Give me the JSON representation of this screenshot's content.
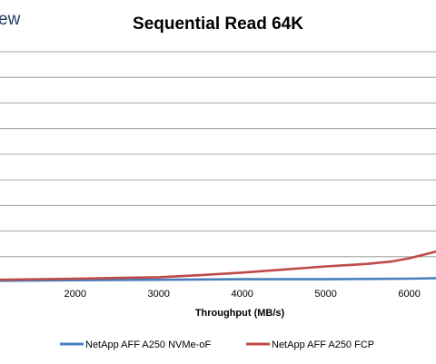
{
  "brand_text": "ew",
  "chart_data": {
    "type": "line",
    "title": "Sequential Read 64K",
    "xlabel": "Throughput (MB/s)",
    "ylabel": "",
    "xlim": [
      1100,
      6320
    ],
    "ylim": [
      0,
      4.5
    ],
    "x_ticks": [
      "2000",
      "3000",
      "4000",
      "5000",
      "6000"
    ],
    "grid": true,
    "legend_position": "bottom",
    "series": [
      {
        "name": "NetApp AFF A250 NVMe-oF",
        "color": "#4a7ebb",
        "x": [
          1100,
          2000,
          3000,
          4000,
          5000,
          6000,
          6320
        ],
        "y": [
          0.03,
          0.04,
          0.05,
          0.06,
          0.06,
          0.07,
          0.08
        ]
      },
      {
        "name": "NetApp AFF A250 FCP",
        "color": "#be4b48",
        "x": [
          1100,
          2000,
          3000,
          3500,
          4000,
          4500,
          5000,
          5500,
          5800,
          6000,
          6150,
          6320
        ],
        "y": [
          0.05,
          0.07,
          0.1,
          0.14,
          0.19,
          0.25,
          0.31,
          0.36,
          0.41,
          0.47,
          0.53,
          0.6
        ]
      }
    ]
  }
}
